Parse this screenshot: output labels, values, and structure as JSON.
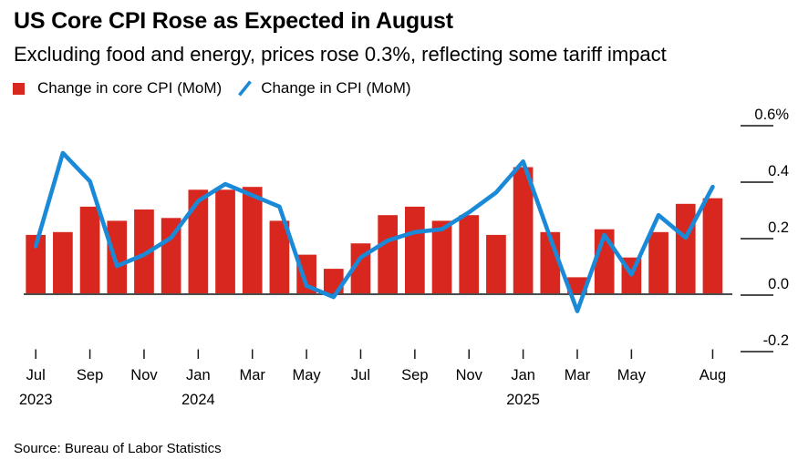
{
  "header": {
    "title": "US Core CPI Rose as Expected in August",
    "subtitle": "Excluding food and energy, prices rose 0.3%, reflecting some tariff impact"
  },
  "legend": {
    "items": [
      {
        "label": "Change in core CPI (MoM)",
        "swatch": "red-square"
      },
      {
        "label": "Change in CPI (MoM)",
        "swatch": "blue-line-slash"
      }
    ]
  },
  "footer": {
    "source": "Source: Bureau of Labor Statistics"
  },
  "colors": {
    "bar_red": "#d8271e",
    "line_blue": "#1a8ad8",
    "axis_gray": "#4d4d4d",
    "tick_black": "#1a1a1a",
    "text_black": "#000000"
  },
  "chart_data": {
    "type": "bar+line",
    "title": "US Core CPI Rose as Expected in August",
    "subtitle": "Excluding food and energy, prices rose 0.3%, reflecting some tariff impact",
    "unit": "% change month over month",
    "grid": false,
    "legend_position": "top-left",
    "ylim": [
      -0.28,
      0.65
    ],
    "x": [
      "Jul 2023",
      "Aug 2023",
      "Sep 2023",
      "Oct 2023",
      "Nov 2023",
      "Dec 2023",
      "Jan 2024",
      "Feb 2024",
      "Mar 2024",
      "Apr 2024",
      "May 2024",
      "Jun 2024",
      "Jul 2024",
      "Aug 2024",
      "Sep 2024",
      "Oct 2024",
      "Nov 2024",
      "Dec 2024",
      "Jan 2025",
      "Feb 2025",
      "Mar 2025",
      "Apr 2025",
      "May 2025",
      "Jun 2025",
      "Jul 2025",
      "Aug 2025"
    ],
    "series": [
      {
        "name": "Change in core CPI (MoM)",
        "type": "bar",
        "values": [
          0.21,
          0.22,
          0.31,
          0.26,
          0.3,
          0.27,
          0.37,
          0.37,
          0.38,
          0.26,
          0.14,
          0.09,
          0.18,
          0.28,
          0.31,
          0.26,
          0.28,
          0.21,
          0.45,
          0.22,
          0.06,
          0.23,
          0.13,
          0.22,
          0.32,
          0.34
        ]
      },
      {
        "name": "Change in CPI (MoM)",
        "type": "line",
        "values": [
          0.17,
          0.5,
          0.4,
          0.1,
          0.14,
          0.2,
          0.33,
          0.39,
          0.35,
          0.31,
          0.03,
          -0.01,
          0.13,
          0.19,
          0.22,
          0.23,
          0.29,
          0.36,
          0.47,
          0.2,
          -0.06,
          0.21,
          0.07,
          0.28,
          0.2,
          0.38
        ]
      }
    ],
    "y_ticks": [
      {
        "label": "0.6%",
        "value": 0.6
      },
      {
        "label": "0.4",
        "value": 0.4
      },
      {
        "label": "0.2",
        "value": 0.2
      },
      {
        "label": "0.0",
        "value": 0.0
      },
      {
        "label": "-0.2",
        "value": -0.2
      }
    ],
    "x_ticks": [
      {
        "label": "Jul",
        "index": 0,
        "year": "2023"
      },
      {
        "label": "Sep",
        "index": 2
      },
      {
        "label": "Nov",
        "index": 4
      },
      {
        "label": "Jan",
        "index": 6,
        "year": "2024"
      },
      {
        "label": "Mar",
        "index": 8
      },
      {
        "label": "May",
        "index": 10
      },
      {
        "label": "Jul",
        "index": 12
      },
      {
        "label": "Sep",
        "index": 14
      },
      {
        "label": "Nov",
        "index": 16
      },
      {
        "label": "Jan",
        "index": 18,
        "year": "2025"
      },
      {
        "label": "Mar",
        "index": 20
      },
      {
        "label": "May",
        "index": 22
      },
      {
        "label": "Aug",
        "index": 25
      }
    ]
  }
}
